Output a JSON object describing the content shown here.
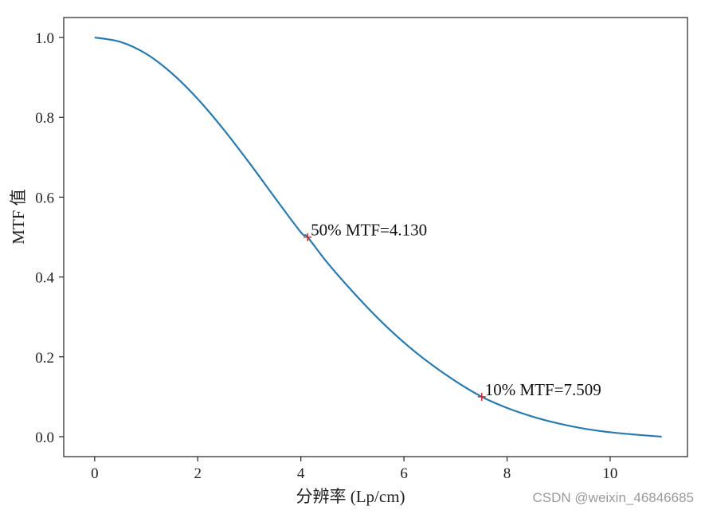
{
  "chart_data": {
    "type": "line",
    "xlabel": "分辨率 (Lp/cm)",
    "ylabel": "MTF 值",
    "xlim": [
      -0.6,
      11.5
    ],
    "ylim": [
      -0.05,
      1.05
    ],
    "xticks": [
      0,
      2,
      4,
      6,
      8,
      10
    ],
    "yticks": [
      0.0,
      0.2,
      0.4,
      0.6,
      0.8,
      1.0
    ],
    "xtick_labels": [
      "0",
      "2",
      "4",
      "6",
      "8",
      "10"
    ],
    "ytick_labels": [
      "0.0",
      "0.2",
      "0.4",
      "0.6",
      "0.8",
      "1.0"
    ],
    "grid": false,
    "series": [
      {
        "color": "#2a7ab0",
        "x": [
          0,
          0.5,
          1,
          1.5,
          2,
          2.5,
          3,
          3.5,
          4,
          4.13,
          4.5,
          5,
          5.5,
          6,
          6.5,
          7,
          7.509,
          8,
          8.5,
          9,
          9.5,
          10,
          10.5,
          11
        ],
        "y": [
          1.0,
          0.989,
          0.959,
          0.91,
          0.846,
          0.77,
          0.686,
          0.598,
          0.512,
          0.5,
          0.438,
          0.364,
          0.296,
          0.236,
          0.184,
          0.139,
          0.1,
          0.072,
          0.05,
          0.033,
          0.02,
          0.011,
          0.005,
          0.0
        ]
      }
    ],
    "markers": [
      {
        "x": 4.13,
        "y": 0.5,
        "color": "#d03030"
      },
      {
        "x": 7.509,
        "y": 0.1,
        "color": "#d03030"
      }
    ],
    "annotations": [
      {
        "text": "50% MTF=4.130",
        "x": 4.13,
        "y": 0.5
      },
      {
        "text": "10% MTF=7.509",
        "x": 7.509,
        "y": 0.1
      }
    ]
  },
  "watermark": "CSDN @weixin_46846685"
}
